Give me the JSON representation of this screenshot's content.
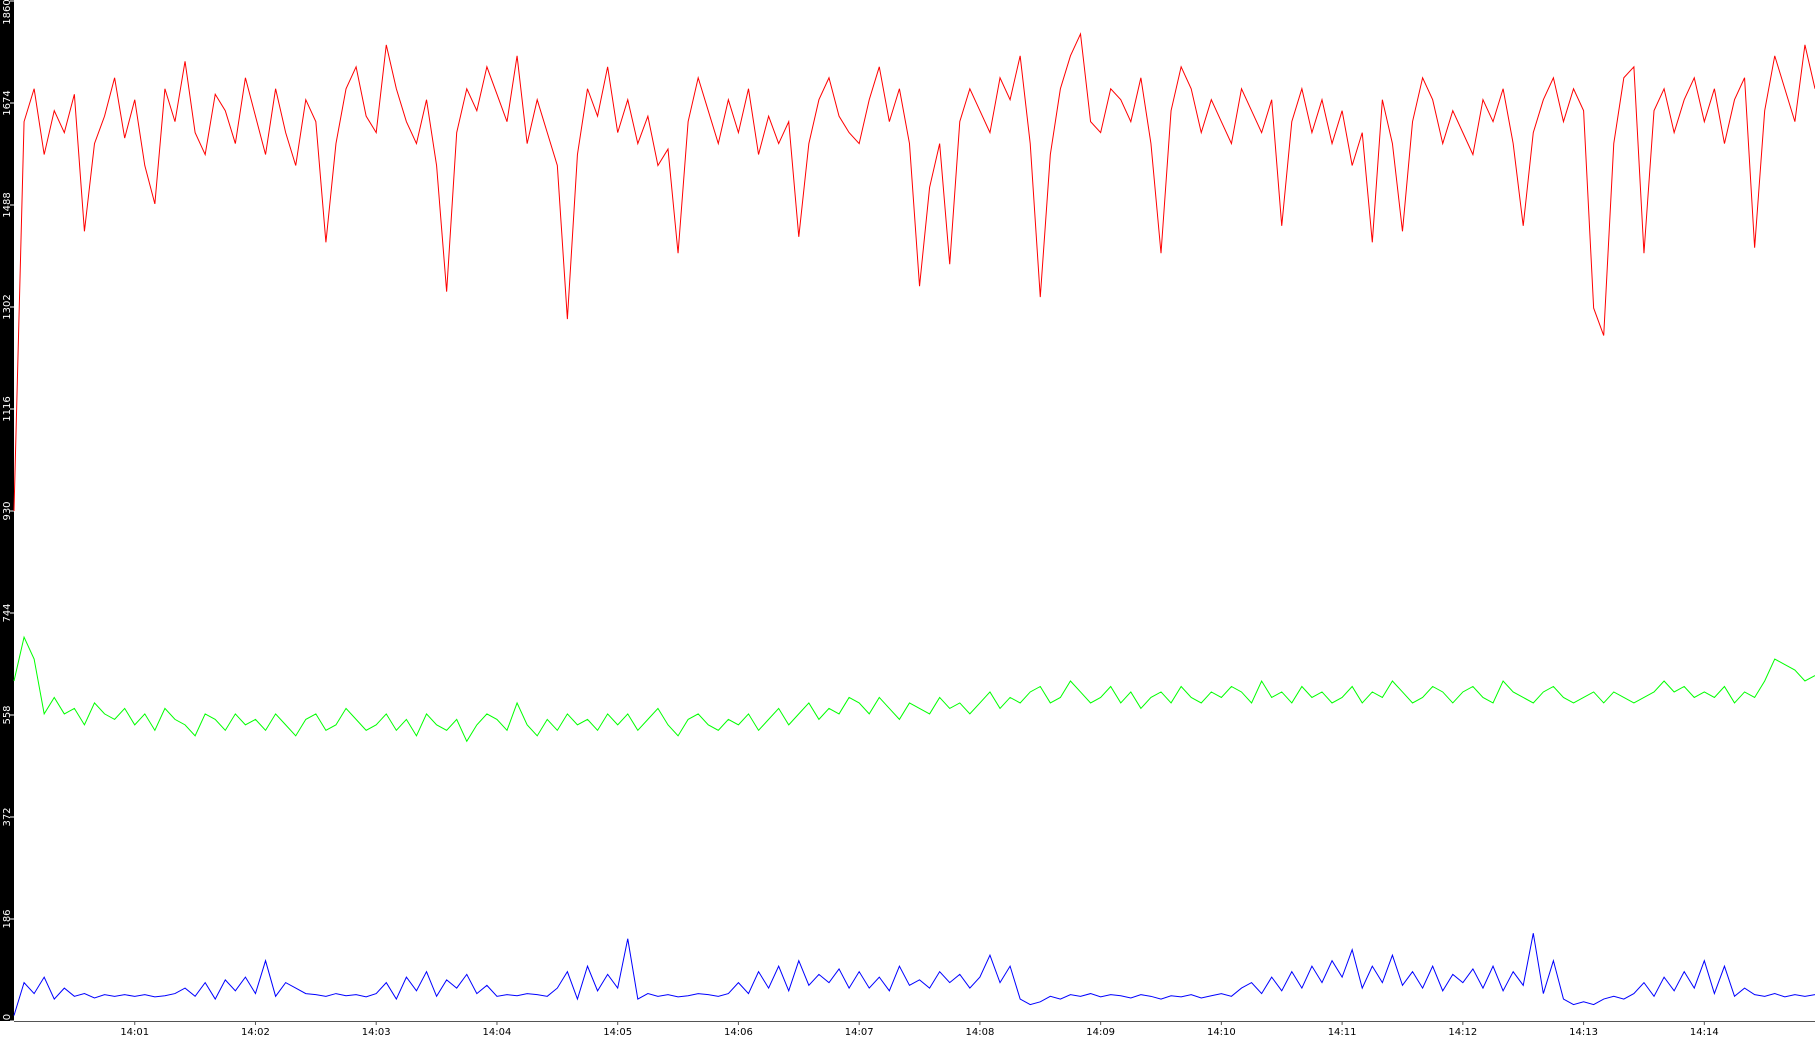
{
  "chart_data": {
    "type": "line",
    "categories": [
      null,
      null,
      null,
      null,
      null,
      null,
      null,
      null,
      null,
      null,
      null,
      null,
      "14:01",
      null,
      null,
      null,
      null,
      null,
      null,
      null,
      null,
      null,
      null,
      null,
      "14:02",
      null,
      null,
      null,
      null,
      null,
      null,
      null,
      null,
      null,
      null,
      null,
      "14:03",
      null,
      null,
      null,
      null,
      null,
      null,
      null,
      null,
      null,
      null,
      null,
      "14:04",
      null,
      null,
      null,
      null,
      null,
      null,
      null,
      null,
      null,
      null,
      null,
      "14:05",
      null,
      null,
      null,
      null,
      null,
      null,
      null,
      null,
      null,
      null,
      null,
      "14:06",
      null,
      null,
      null,
      null,
      null,
      null,
      null,
      null,
      null,
      null,
      null,
      "14:07",
      null,
      null,
      null,
      null,
      null,
      null,
      null,
      null,
      null,
      null,
      null,
      "14:08",
      null,
      null,
      null,
      null,
      null,
      null,
      null,
      null,
      null,
      null,
      null,
      "14:09",
      null,
      null,
      null,
      null,
      null,
      null,
      null,
      null,
      null,
      null,
      null,
      "14:10",
      null,
      null,
      null,
      null,
      null,
      null,
      null,
      null,
      null,
      null,
      null,
      "14:11",
      null,
      null,
      null,
      null,
      null,
      null,
      null,
      null,
      null,
      null,
      null,
      "14:12",
      null,
      null,
      null,
      null,
      null,
      null,
      null,
      null,
      null,
      null,
      null,
      "14:13",
      null,
      null,
      null,
      null,
      null,
      null,
      null,
      null,
      null,
      null,
      null,
      "14:14",
      null,
      null,
      null,
      null,
      null,
      null,
      null,
      null,
      null,
      null,
      null
    ],
    "series": [
      {
        "color": "#ff0000",
        "values": [
          930,
          1640,
          1700,
          1580,
          1660,
          1620,
          1690,
          1440,
          1600,
          1650,
          1720,
          1610,
          1680,
          1560,
          1490,
          1700,
          1640,
          1750,
          1620,
          1580,
          1690,
          1660,
          1600,
          1720,
          1650,
          1580,
          1700,
          1620,
          1560,
          1680,
          1640,
          1420,
          1600,
          1700,
          1740,
          1650,
          1620,
          1780,
          1700,
          1640,
          1600,
          1680,
          1560,
          1330,
          1620,
          1700,
          1660,
          1740,
          1690,
          1640,
          1760,
          1600,
          1680,
          1620,
          1560,
          1280,
          1580,
          1700,
          1650,
          1740,
          1620,
          1680,
          1600,
          1650,
          1560,
          1590,
          1400,
          1640,
          1720,
          1660,
          1600,
          1680,
          1620,
          1700,
          1580,
          1650,
          1600,
          1640,
          1430,
          1600,
          1680,
          1720,
          1650,
          1620,
          1600,
          1680,
          1740,
          1640,
          1700,
          1600,
          1340,
          1520,
          1600,
          1380,
          1640,
          1700,
          1660,
          1620,
          1720,
          1680,
          1760,
          1600,
          1320,
          1580,
          1700,
          1760,
          1800,
          1640,
          1620,
          1700,
          1680,
          1640,
          1720,
          1600,
          1400,
          1660,
          1740,
          1700,
          1620,
          1680,
          1640,
          1600,
          1700,
          1660,
          1620,
          1680,
          1450,
          1640,
          1700,
          1620,
          1680,
          1600,
          1660,
          1560,
          1620,
          1420,
          1680,
          1600,
          1440,
          1640,
          1720,
          1680,
          1600,
          1660,
          1620,
          1580,
          1680,
          1640,
          1700,
          1600,
          1450,
          1620,
          1680,
          1720,
          1640,
          1700,
          1660,
          1300,
          1250,
          1600,
          1720,
          1740,
          1400,
          1660,
          1700,
          1620,
          1680,
          1720,
          1640,
          1700,
          1600,
          1680,
          1720,
          1410,
          1660,
          1760,
          1700,
          1640,
          1780,
          1700
        ]
      },
      {
        "color": "#00ff00",
        "values": [
          620,
          700,
          660,
          560,
          590,
          560,
          570,
          540,
          580,
          560,
          550,
          570,
          540,
          560,
          530,
          570,
          550,
          540,
          520,
          560,
          550,
          530,
          560,
          540,
          550,
          530,
          560,
          540,
          520,
          550,
          560,
          530,
          540,
          570,
          550,
          530,
          540,
          560,
          530,
          550,
          520,
          560,
          540,
          530,
          550,
          510,
          540,
          560,
          550,
          530,
          580,
          540,
          520,
          550,
          530,
          560,
          540,
          550,
          530,
          560,
          540,
          560,
          530,
          550,
          570,
          540,
          520,
          550,
          560,
          540,
          530,
          550,
          540,
          560,
          530,
          550,
          570,
          540,
          560,
          580,
          550,
          570,
          560,
          590,
          580,
          560,
          590,
          570,
          550,
          580,
          570,
          560,
          590,
          570,
          580,
          560,
          580,
          600,
          570,
          590,
          580,
          600,
          610,
          580,
          590,
          620,
          600,
          580,
          590,
          610,
          580,
          600,
          570,
          590,
          600,
          580,
          610,
          590,
          580,
          600,
          590,
          610,
          600,
          580,
          620,
          590,
          600,
          580,
          610,
          590,
          600,
          580,
          590,
          610,
          580,
          600,
          590,
          620,
          600,
          580,
          590,
          610,
          600,
          580,
          600,
          610,
          590,
          580,
          620,
          600,
          590,
          580,
          600,
          610,
          590,
          580,
          590,
          600,
          580,
          600,
          590,
          580,
          590,
          600,
          620,
          600,
          610,
          590,
          600,
          590,
          610,
          580,
          600,
          590,
          620,
          660,
          650,
          640,
          620,
          630
        ]
      },
      {
        "color": "#0000ff",
        "values": [
          10,
          70,
          50,
          80,
          40,
          60,
          45,
          50,
          42,
          48,
          45,
          48,
          45,
          48,
          44,
          46,
          50,
          60,
          45,
          70,
          40,
          75,
          55,
          80,
          50,
          110,
          45,
          70,
          60,
          50,
          48,
          45,
          50,
          46,
          48,
          44,
          50,
          70,
          40,
          80,
          55,
          90,
          45,
          75,
          60,
          85,
          50,
          65,
          45,
          48,
          46,
          50,
          48,
          45,
          60,
          90,
          40,
          100,
          55,
          85,
          60,
          150,
          40,
          50,
          45,
          48,
          44,
          46,
          50,
          48,
          45,
          50,
          70,
          50,
          90,
          60,
          100,
          55,
          110,
          65,
          85,
          70,
          95,
          60,
          90,
          60,
          80,
          55,
          100,
          65,
          75,
          60,
          90,
          70,
          85,
          60,
          80,
          120,
          70,
          100,
          40,
          30,
          35,
          45,
          40,
          48,
          45,
          50,
          44,
          48,
          46,
          42,
          48,
          45,
          40,
          46,
          44,
          48,
          42,
          46,
          50,
          45,
          60,
          70,
          50,
          80,
          55,
          90,
          60,
          100,
          70,
          110,
          80,
          130,
          60,
          100,
          70,
          120,
          65,
          90,
          60,
          100,
          55,
          85,
          70,
          95,
          60,
          100,
          55,
          90,
          65,
          160,
          50,
          110,
          40,
          30,
          35,
          30,
          40,
          45,
          40,
          50,
          70,
          45,
          80,
          55,
          90,
          60,
          110,
          50,
          100,
          45,
          60,
          48,
          45,
          50,
          44,
          48,
          45,
          48
        ]
      }
    ],
    "ylim": [
      0,
      1860
    ],
    "yticks": [
      0,
      186,
      372,
      558,
      744,
      930,
      1116,
      1302,
      1488,
      1674,
      1860
    ],
    "grid": false
  }
}
